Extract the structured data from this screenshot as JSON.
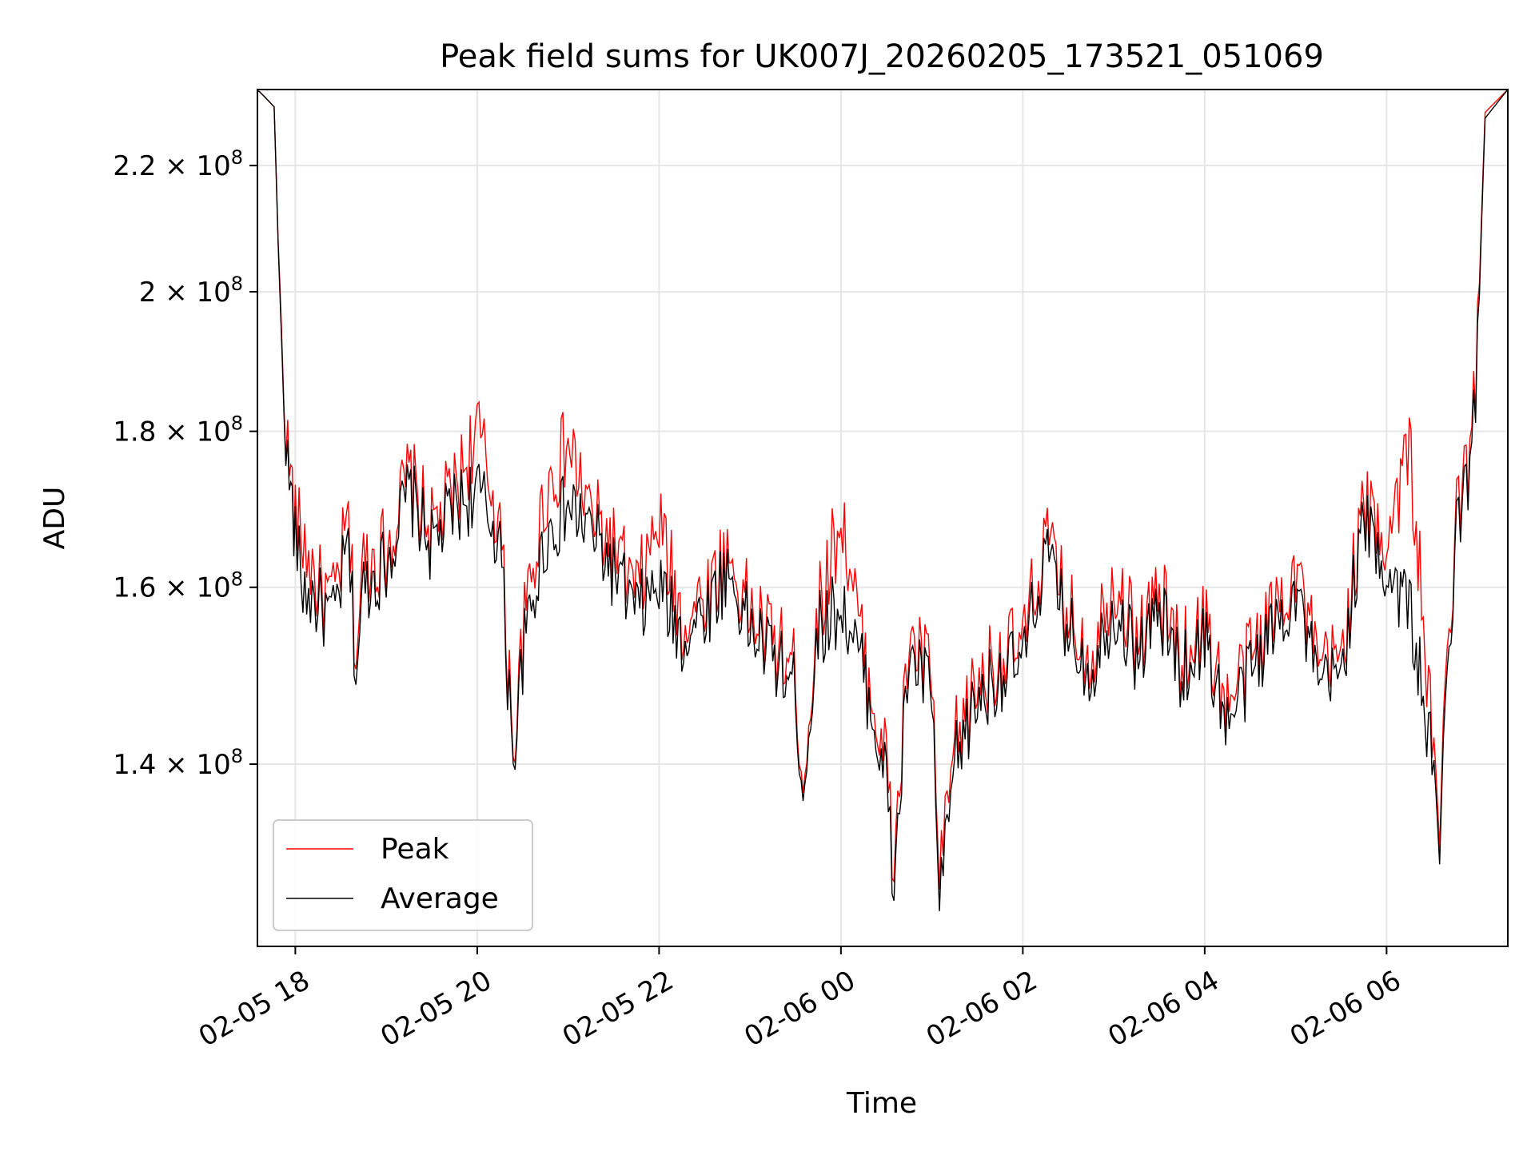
{
  "chart_data": {
    "type": "line",
    "title": "Peak field sums for UK007J_20260205_173521_051069",
    "xlabel": "Time",
    "ylabel": "ADU",
    "y_scale": "log",
    "ylim": [
      122000000,
      233000000
    ],
    "xlim": [
      "02-05 17:35",
      "02-06 07:20"
    ],
    "x_ticks": [
      "02-05 18",
      "02-05 20",
      "02-05 22",
      "02-06 00",
      "02-06 02",
      "02-06 04",
      "02-06 06"
    ],
    "y_ticks": [
      {
        "value": 140000000,
        "mantissa": "1.4"
      },
      {
        "value": 160000000,
        "mantissa": "1.6"
      },
      {
        "value": 180000000,
        "mantissa": "1.8"
      },
      {
        "value": 200000000,
        "mantissa": "2"
      },
      {
        "value": 220000000,
        "mantissa": "2.2"
      }
    ],
    "y_tick_suffix": "× 10",
    "y_tick_exponent": "8",
    "grid": true,
    "legend_position": "bottom-left",
    "series": [
      {
        "name": "Peak",
        "color": "#ff0000"
      },
      {
        "name": "Average",
        "color": "#000000"
      }
    ],
    "x": [
      "02-05 17:35",
      "02-05 17:46",
      "02-05 17:50",
      "02-05 17:55",
      "02-05 17:58",
      "02-05 18:00",
      "02-05 18:05",
      "02-05 18:15",
      "02-05 18:25",
      "02-05 18:35",
      "02-05 18:40",
      "02-05 18:45",
      "02-05 19:00",
      "02-05 19:15",
      "02-05 19:30",
      "02-05 19:45",
      "02-05 20:00",
      "02-05 20:15",
      "02-05 20:20",
      "02-05 20:25",
      "02-05 20:30",
      "02-05 20:45",
      "02-05 21:00",
      "02-05 21:15",
      "02-05 21:30",
      "02-05 21:45",
      "02-05 22:00",
      "02-05 22:15",
      "02-05 22:30",
      "02-05 22:45",
      "02-05 23:00",
      "02-05 23:15",
      "02-05 23:30",
      "02-05 23:35",
      "02-05 23:45",
      "02-06 00:00",
      "02-06 00:15",
      "02-06 00:30",
      "02-06 00:35",
      "02-06 00:45",
      "02-06 01:00",
      "02-06 01:05",
      "02-06 01:15",
      "02-06 01:30",
      "02-06 01:45",
      "02-06 02:00",
      "02-06 02:15",
      "02-06 02:30",
      "02-06 02:45",
      "02-06 03:00",
      "02-06 03:15",
      "02-06 03:30",
      "02-06 03:45",
      "02-06 04:00",
      "02-06 04:15",
      "02-06 04:30",
      "02-06 04:45",
      "02-06 05:00",
      "02-06 05:15",
      "02-06 05:30",
      "02-06 05:45",
      "02-06 06:00",
      "02-06 06:15",
      "02-06 06:30",
      "02-06 06:35",
      "02-06 06:45",
      "02-06 06:55",
      "02-06 07:00",
      "02-06 07:05",
      "02-06 07:20"
    ],
    "average": [
      233000000,
      230000000,
      196000000,
      175000000,
      170000000,
      166000000,
      160000000,
      158000000,
      156000000,
      165000000,
      150000000,
      160000000,
      163000000,
      172000000,
      165000000,
      170000000,
      172000000,
      166000000,
      150000000,
      141000000,
      152000000,
      166000000,
      170000000,
      167000000,
      162000000,
      157000000,
      160000000,
      154000000,
      157000000,
      162000000,
      155000000,
      152000000,
      148000000,
      137000000,
      155000000,
      158000000,
      150000000,
      138000000,
      127000000,
      152000000,
      148000000,
      125000000,
      140000000,
      147000000,
      150000000,
      151000000,
      164000000,
      155000000,
      150000000,
      158000000,
      152000000,
      157000000,
      150000000,
      154000000,
      144000000,
      150000000,
      155000000,
      160000000,
      148000000,
      150000000,
      168000000,
      162000000,
      158000000,
      140000000,
      132000000,
      165000000,
      175000000,
      190000000,
      228000000,
      233000000
    ],
    "peak": [
      233000000,
      230000000,
      197000000,
      177000000,
      172000000,
      168000000,
      166000000,
      160000000,
      158000000,
      168000000,
      152000000,
      163000000,
      165000000,
      174000000,
      167000000,
      172000000,
      180000000,
      168000000,
      152000000,
      142000000,
      154000000,
      172000000,
      178000000,
      169000000,
      165000000,
      159000000,
      168000000,
      156000000,
      159000000,
      164000000,
      157000000,
      154000000,
      150000000,
      138000000,
      157000000,
      169000000,
      152000000,
      140000000,
      129000000,
      154000000,
      150000000,
      127000000,
      142000000,
      149000000,
      152000000,
      153000000,
      166000000,
      157000000,
      152000000,
      162000000,
      154000000,
      159000000,
      152000000,
      156000000,
      146000000,
      152000000,
      157000000,
      163000000,
      150000000,
      152000000,
      170000000,
      166000000,
      178000000,
      142000000,
      134000000,
      167000000,
      177000000,
      192000000,
      229000000,
      233000000
    ]
  }
}
